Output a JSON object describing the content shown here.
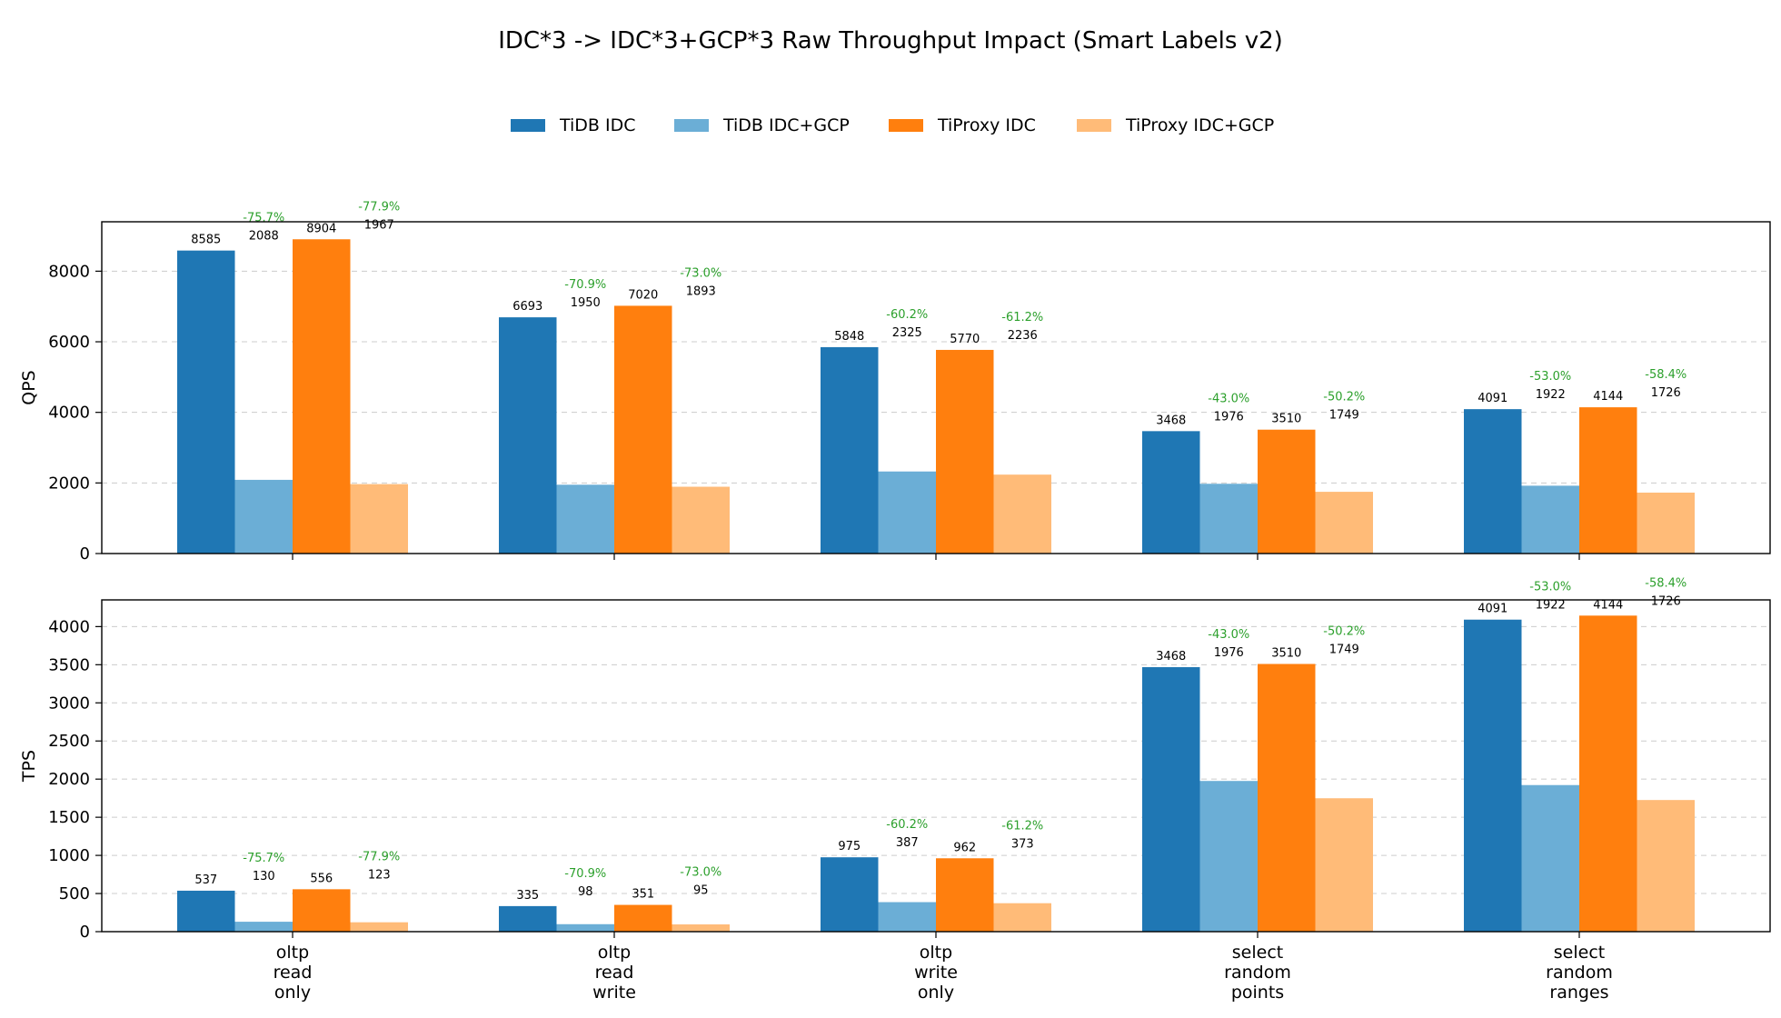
{
  "chart_data": {
    "type": "bar",
    "title": "IDC*3 -> IDC*3+GCP*3 Raw Throughput Impact (Smart Labels v2)",
    "legend_position": "top-center",
    "categories": [
      [
        "oltp",
        "read",
        "only"
      ],
      [
        "oltp",
        "read",
        "write"
      ],
      [
        "oltp",
        "write",
        "only"
      ],
      [
        "select",
        "random",
        "points"
      ],
      [
        "select",
        "random",
        "ranges"
      ]
    ],
    "series_style": [
      {
        "name": "TiDB IDC",
        "color": "#1f77b4"
      },
      {
        "name": "TiDB IDC+GCP",
        "color": "#6baed6"
      },
      {
        "name": "TiProxy IDC",
        "color": "#ff7f0e"
      },
      {
        "name": "TiProxy IDC+GCP",
        "color": "#ffbb78"
      }
    ],
    "grid": true,
    "panels": [
      {
        "ylabel": "QPS",
        "ylim": [
          0,
          9400
        ],
        "yticks": [
          0,
          2000,
          4000,
          6000,
          8000
        ],
        "series": [
          {
            "values": [
              8585,
              6693,
              5848,
              3468,
              4091
            ],
            "labels": [
              "8585",
              "6693",
              "5848",
              "3468",
              "4091"
            ]
          },
          {
            "values": [
              2088,
              1950,
              2325,
              1976,
              1922
            ],
            "labels": [
              "2088",
              "1950",
              "2325",
              "1976",
              "1922"
            ]
          },
          {
            "values": [
              8904,
              7020,
              5770,
              3510,
              4144
            ],
            "labels": [
              "8904",
              "7020",
              "5770",
              "3510",
              "4144"
            ]
          },
          {
            "values": [
              1967,
              1893,
              2236,
              1749,
              1726
            ],
            "labels": [
              "1967",
              "1893",
              "2236",
              "1749",
              "1726"
            ]
          }
        ],
        "deltas": {
          "tidb": [
            "-75.7%",
            "-70.9%",
            "-60.2%",
            "-43.0%",
            "-53.0%"
          ],
          "tiproxy": [
            "-77.9%",
            "-73.0%",
            "-61.2%",
            "-50.2%",
            "-58.4%"
          ]
        }
      },
      {
        "ylabel": "TPS",
        "ylim": [
          0,
          4350
        ],
        "yticks": [
          0,
          500,
          1000,
          1500,
          2000,
          2500,
          3000,
          3500,
          4000
        ],
        "series": [
          {
            "values": [
              537,
              335,
              975,
              3468,
              4091
            ],
            "labels": [
              "537",
              "335",
              "975",
              "3468",
              "4091"
            ]
          },
          {
            "values": [
              130,
              98,
              387,
              1976,
              1922
            ],
            "labels": [
              "130",
              "98",
              "387",
              "1976",
              "1922"
            ]
          },
          {
            "values": [
              556,
              351,
              962,
              3510,
              4144
            ],
            "labels": [
              "556",
              "351",
              "962",
              "3510",
              "4144"
            ]
          },
          {
            "values": [
              123,
              95,
              373,
              1749,
              1726
            ],
            "labels": [
              "123",
              "95",
              "373",
              "1749",
              "1726"
            ]
          }
        ],
        "deltas": {
          "tidb": [
            "-75.7%",
            "-70.9%",
            "-60.2%",
            "-43.0%",
            "-53.0%"
          ],
          "tiproxy": [
            "-77.9%",
            "-73.0%",
            "-61.2%",
            "-50.2%",
            "-58.4%"
          ]
        }
      }
    ]
  }
}
